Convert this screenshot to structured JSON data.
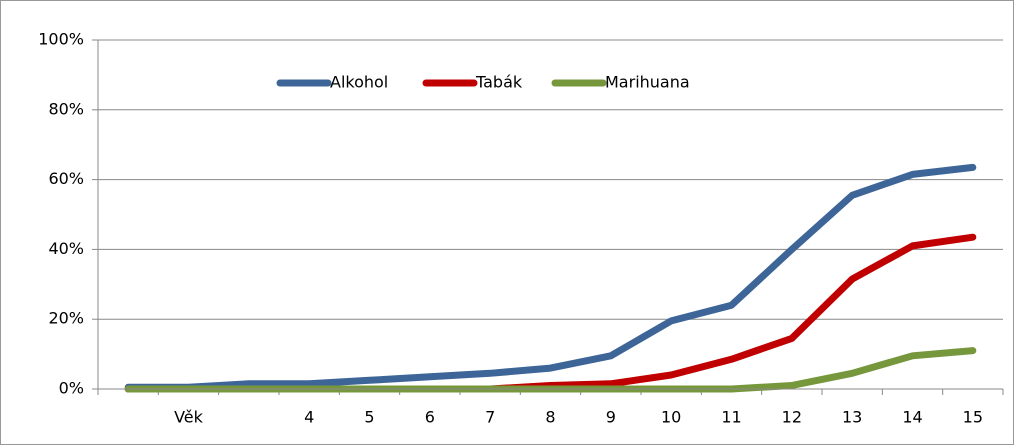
{
  "chart_data": {
    "type": "line",
    "categories": [
      null,
      "Věk",
      null,
      "4",
      "5",
      "6",
      "7",
      "8",
      "9",
      "10",
      "11",
      "12",
      "13",
      "14",
      "15"
    ],
    "series": [
      {
        "name": "Alkohol",
        "color": "#3d6597",
        "values": [
          0.5,
          0.5,
          1.5,
          1.5,
          2.5,
          3.5,
          4.5,
          6,
          9.5,
          19.5,
          24,
          40,
          55.5,
          61.5,
          63.5
        ]
      },
      {
        "name": "Tabák",
        "color": "#c00000",
        "values": [
          0,
          0,
          0,
          0,
          0,
          0,
          0,
          1,
          1.5,
          4,
          8.5,
          14.5,
          31.5,
          41,
          43.5
        ]
      },
      {
        "name": "Marihuana",
        "color": "#77973d",
        "values": [
          0,
          0,
          0,
          0,
          0,
          0,
          0,
          0,
          0,
          0,
          0,
          1,
          4.5,
          9.5,
          11
        ]
      }
    ],
    "ylim": [
      0,
      100
    ],
    "yticks": [
      {
        "value": 0,
        "label": "0%"
      },
      {
        "value": 20,
        "label": "20%"
      },
      {
        "value": 40,
        "label": "40%"
      },
      {
        "value": 60,
        "label": "60%"
      },
      {
        "value": 80,
        "label": "80%"
      },
      {
        "value": 100,
        "label": "100%"
      }
    ],
    "grid": true,
    "legend": "top"
  }
}
